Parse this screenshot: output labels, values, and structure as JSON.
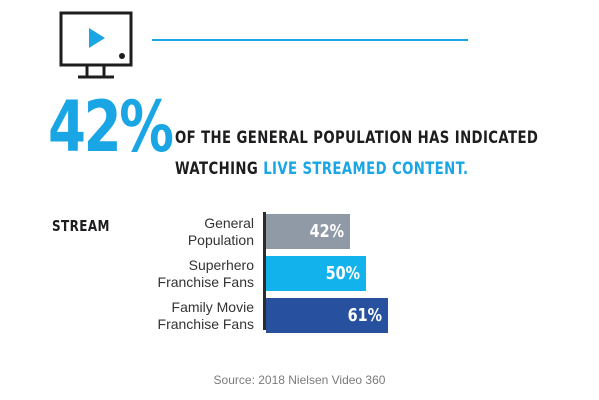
{
  "headline": {
    "big_number": "42%",
    "line1": "OF THE GENERAL POPULATION HAS INDICATED",
    "line2_prefix": "WATCHING ",
    "line2_highlight": "LIVE STREAMED CONTENT."
  },
  "icon": "tv-play-icon",
  "colors": {
    "accent": "#1aa6e4",
    "bar_general": "#8f9aa6",
    "bar_superhero": "#12b3ec",
    "bar_family": "#27509e",
    "text_dark": "#1d1d1f"
  },
  "source": "Source: 2018 Nielsen Video 360",
  "chart_data": {
    "type": "bar",
    "orientation": "horizontal",
    "title": "STREAM",
    "categories": [
      [
        "General",
        "Population"
      ],
      [
        "Superhero",
        "Franchise Fans"
      ],
      [
        "Family Movie",
        "Franchise Fans"
      ]
    ],
    "values": [
      42,
      50,
      61
    ],
    "value_labels": [
      "42%",
      "50%",
      "61%"
    ],
    "xlim": [
      0,
      100
    ],
    "grid": false,
    "legend": "none"
  }
}
